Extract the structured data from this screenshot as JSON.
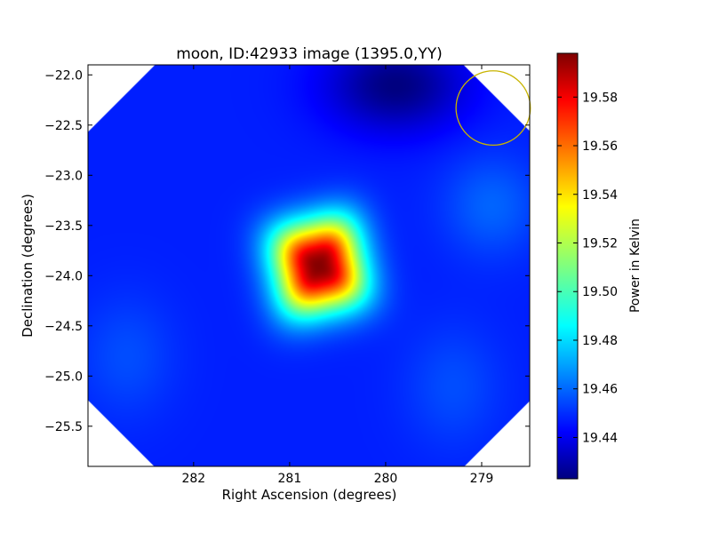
{
  "chart_data": [
    {
      "type": "heatmap",
      "title": "moon, ID:42933 image (1395.0,YY)",
      "xlabel": "Right Ascension (degrees)",
      "ylabel": "Declination (degrees)",
      "xlim": [
        283.1,
        278.5
      ],
      "ylim": [
        -25.9,
        -21.9
      ],
      "x_ticks": [
        282,
        281,
        280,
        279
      ],
      "x_tick_labels": [
        "282",
        "281",
        "280",
        "279"
      ],
      "y_ticks": [
        -22.0,
        -22.5,
        -23.0,
        -23.5,
        -24.0,
        -24.5,
        -25.0,
        -25.5
      ],
      "y_tick_labels": [
        "−22.0",
        "−22.5",
        "−23.0",
        "−23.5",
        "−24.0",
        "−24.5",
        "−25.0",
        "−25.5"
      ],
      "colormap": "jet",
      "peak": {
        "ra": 280.7,
        "dec": -23.9,
        "value": 19.597
      },
      "background_value": 19.45,
      "minimum_region": {
        "ra": 279.9,
        "dec": -22.1,
        "value": 19.423
      },
      "marker_circle": {
        "ra": 278.88,
        "dec": -22.33,
        "radius_deg": 0.37,
        "color": "#c8b400"
      },
      "grid": false
    },
    {
      "type": "colorbar",
      "label": "Power in Kelvin",
      "range": [
        19.423,
        19.598
      ],
      "ticks": [
        19.44,
        19.46,
        19.48,
        19.5,
        19.52,
        19.54,
        19.56,
        19.58
      ],
      "tick_labels": [
        "19.44",
        "19.46",
        "19.48",
        "19.50",
        "19.52",
        "19.54",
        "19.56",
        "19.58"
      ]
    }
  ]
}
